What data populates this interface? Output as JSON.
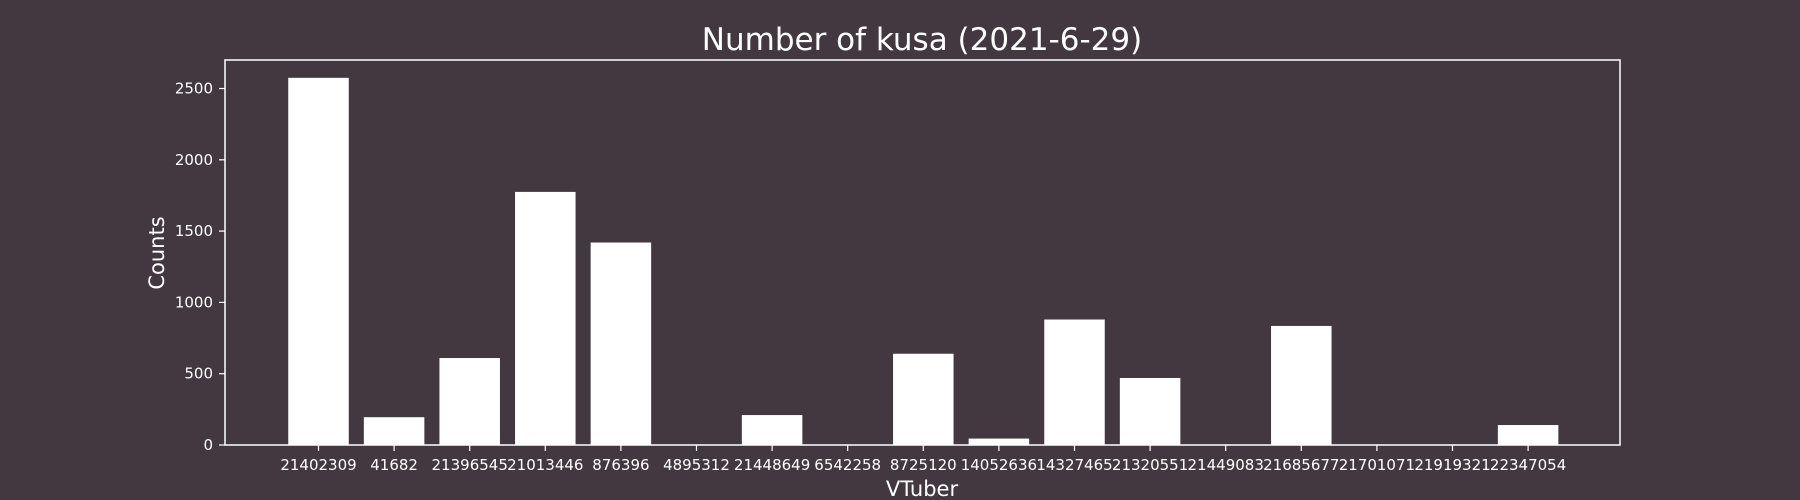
{
  "colors": {
    "background": "#433840",
    "foreground": "#ffffff",
    "bar": "#ffffff"
  },
  "chart_data": {
    "type": "bar",
    "title": "Number of kusa (2021-6-29)",
    "xlabel": "VTuber",
    "ylabel": "Counts",
    "categories": [
      "21402309",
      "41682",
      "21396545",
      "21013446",
      "876396",
      "4895312",
      "21448649",
      "6542258",
      "8725120",
      "14052636",
      "14327465",
      "21320551",
      "21449083",
      "21685677",
      "21701071",
      "21919321",
      "22347054"
    ],
    "values": [
      2575,
      195,
      610,
      1775,
      1420,
      0,
      210,
      0,
      640,
      45,
      880,
      470,
      0,
      835,
      0,
      0,
      140
    ],
    "ylim": [
      0,
      2700
    ],
    "yticks": [
      0,
      500,
      1000,
      1500,
      2000,
      2500
    ],
    "grid": false,
    "legend": "none"
  }
}
